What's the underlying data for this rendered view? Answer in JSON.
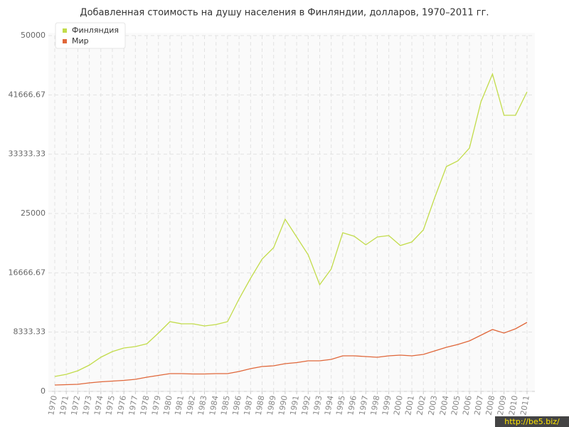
{
  "chart_data": {
    "type": "line",
    "title": "Добавленная стоимость на душу населения в Финляндии, долларов, 1970–2011 гг.",
    "categories": [
      "1970",
      "1971",
      "1972",
      "1973",
      "1974",
      "1975",
      "1976",
      "1977",
      "1978",
      "1979",
      "1980",
      "1981",
      "1982",
      "1983",
      "1984",
      "1985",
      "1986",
      "1987",
      "1988",
      "1989",
      "1990",
      "1991",
      "1992",
      "1993",
      "1994",
      "1995",
      "1996",
      "1997",
      "1998",
      "1999",
      "2000",
      "2001",
      "2002",
      "2003",
      "2004",
      "2005",
      "2006",
      "2007",
      "2008",
      "2009",
      "2010",
      "2011"
    ],
    "series": [
      {
        "name": "Финляндия",
        "color": "#c2dc4a",
        "values": [
          2100,
          2400,
          2900,
          3700,
          4800,
          5600,
          6100,
          6300,
          6700,
          8200,
          9800,
          9500,
          9500,
          9200,
          9400,
          9800,
          13000,
          15900,
          18600,
          20200,
          24200,
          21700,
          19200,
          15000,
          17200,
          22300,
          21800,
          20600,
          21700,
          21900,
          20500,
          21000,
          22700,
          27300,
          31600,
          32400,
          34200,
          40700,
          44600,
          38800,
          38800,
          42100
        ]
      },
      {
        "name": "Мир",
        "color": "#e0673a",
        "values": [
          900,
          950,
          1000,
          1200,
          1350,
          1450,
          1550,
          1700,
          2000,
          2250,
          2500,
          2500,
          2450,
          2450,
          2500,
          2500,
          2800,
          3200,
          3500,
          3600,
          3900,
          4050,
          4300,
          4300,
          4500,
          5000,
          5000,
          4900,
          4800,
          5000,
          5100,
          5000,
          5200,
          5700,
          6200,
          6600,
          7100,
          7900,
          8700,
          8200,
          8800,
          9700
        ]
      }
    ],
    "ylim": [
      0,
      50000
    ],
    "yticks": [
      0,
      8333.33,
      16666.67,
      25000,
      33333.33,
      41666.67,
      50000
    ],
    "grid": true,
    "legend": "top-left",
    "watermark": "http://be5.biz/"
  }
}
